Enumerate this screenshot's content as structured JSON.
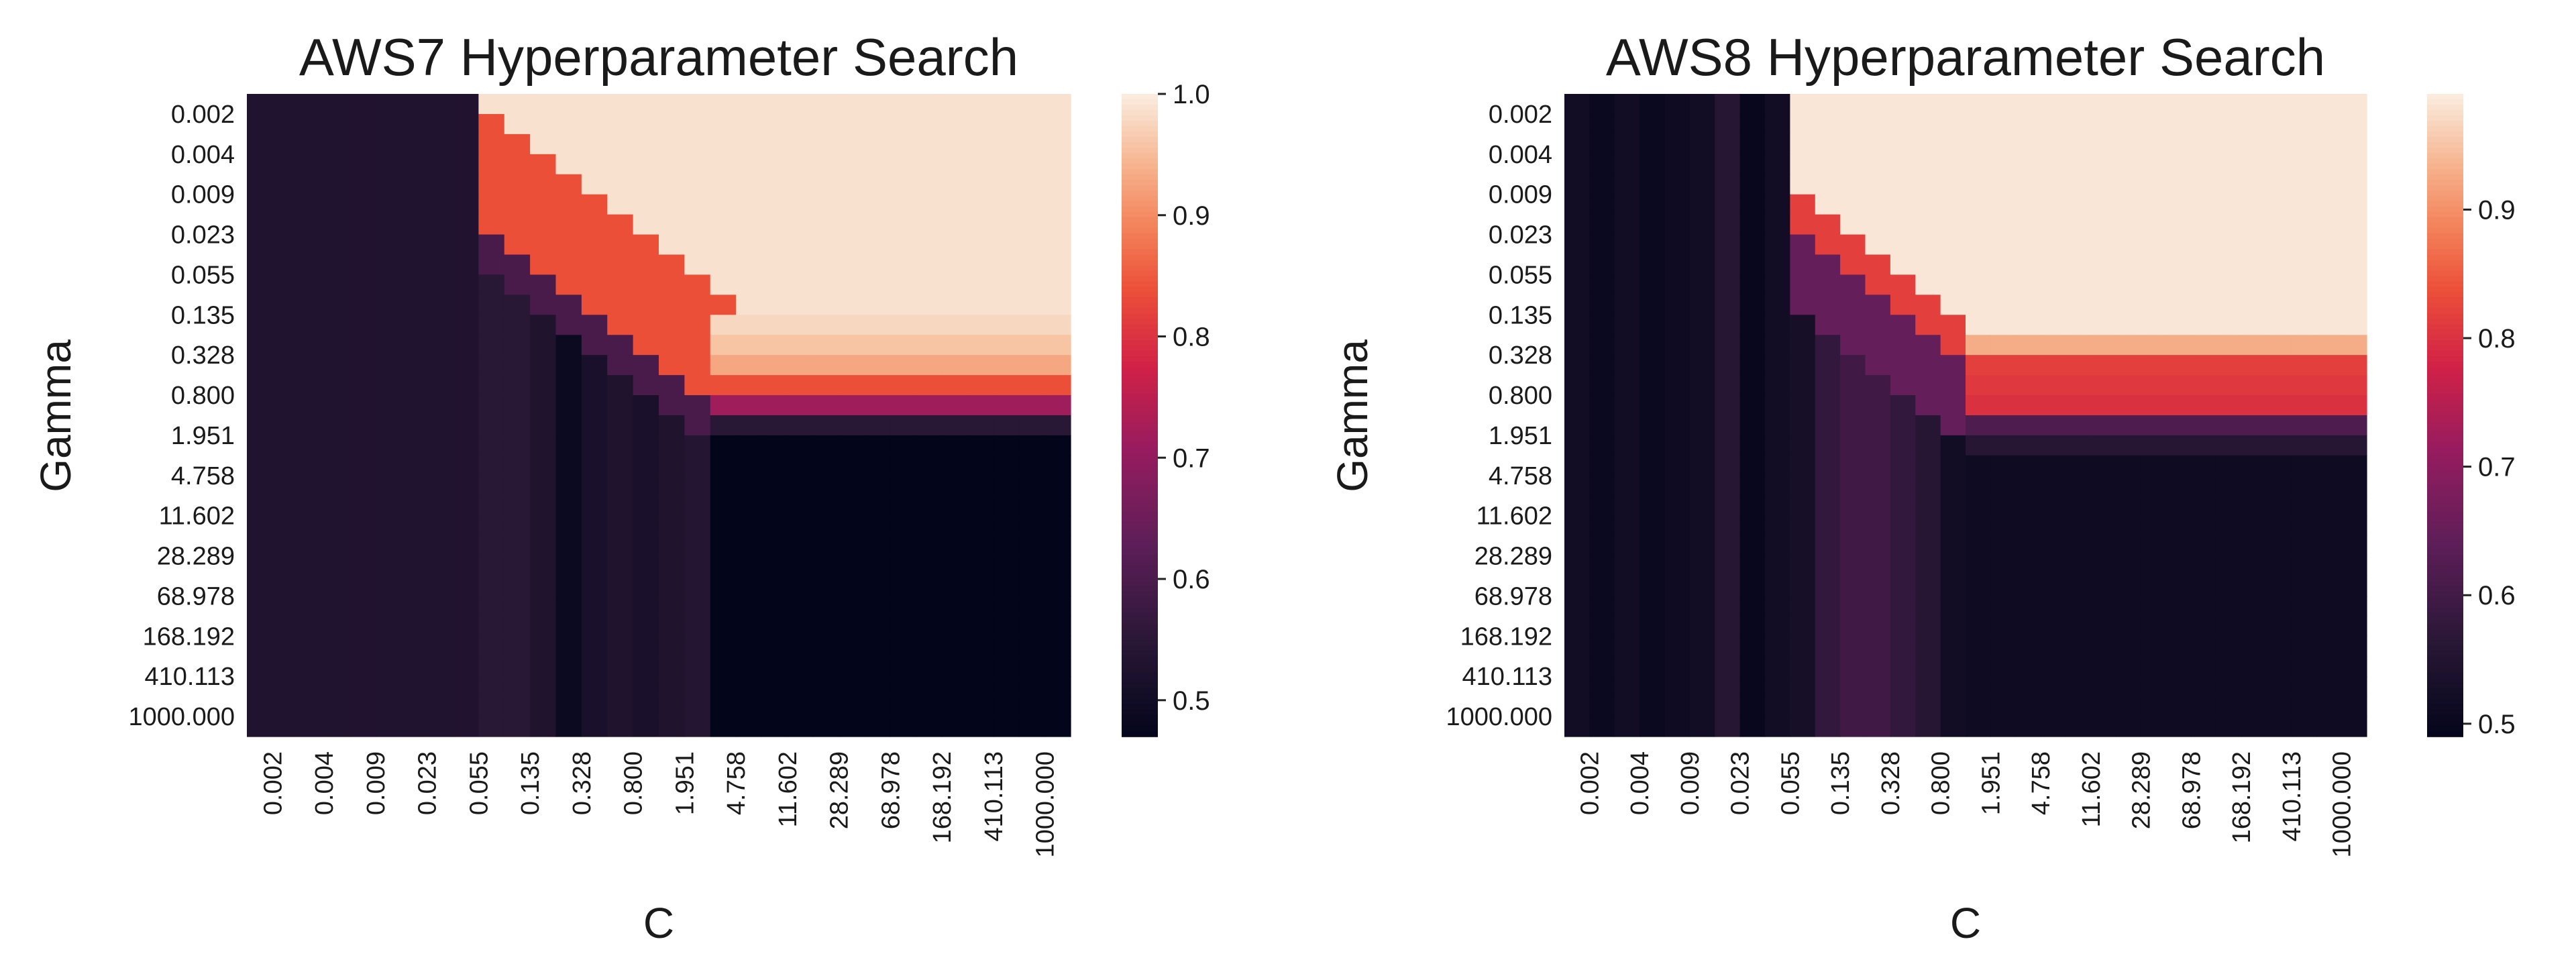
{
  "chart_data": [
    {
      "type": "heatmap",
      "title": "AWS7 Hyperparameter Search",
      "xlabel": "C",
      "ylabel": "Gamma",
      "x_ticks": [
        "0.002",
        "0.004",
        "0.009",
        "0.023",
        "0.055",
        "0.135",
        "0.328",
        "0.800",
        "1.951",
        "4.758",
        "11.602",
        "28.289",
        "68.978",
        "168.192",
        "410.113",
        "1000.000"
      ],
      "y_ticks": [
        "0.002",
        "0.004",
        "0.009",
        "0.023",
        "0.055",
        "0.135",
        "0.328",
        "0.800",
        "1.951",
        "4.758",
        "11.602",
        "28.289",
        "68.978",
        "168.192",
        "410.113",
        "1000.000"
      ],
      "grid_cols": 32,
      "grid_rows": 32,
      "colorbar": {
        "range": [
          0.47,
          1.0
        ],
        "ticks": [
          "0.5",
          "0.6",
          "0.7",
          "0.8",
          "0.9",
          "1.0"
        ],
        "tick_values": [
          0.5,
          0.6,
          0.7,
          0.8,
          0.9,
          1.0
        ],
        "colormap": "rocket"
      },
      "model": {
        "low": 0.53,
        "low_col_end": 9,
        "low_col_vals": [
          0.533,
          0.532,
          0.533,
          0.532,
          0.534,
          0.533,
          0.532,
          0.533,
          0.534
        ],
        "col_stripes": {
          "9": 0.55,
          "10": 0.55,
          "11": 0.53,
          "12": 0.49,
          "13": 0.52,
          "14": 0.53,
          "15": 0.52,
          "16": 0.53,
          "17": 0.54
        },
        "bottom_zero_row": 17,
        "bottom_zero_col": 18,
        "bottom_val": 0.47,
        "band_offset": 3,
        "band_width": 6,
        "band_val": 0.84,
        "top_val": 0.99,
        "upper_edge_offset": 1,
        "upper_edge_val": 0.6,
        "row_profile_rows": [
          11,
          12,
          13,
          14,
          15,
          16,
          17
        ],
        "row_profile_vals": [
          0.98,
          0.96,
          0.93,
          0.84,
          0.72,
          0.55,
          0.51
        ]
      }
    },
    {
      "type": "heatmap",
      "title": "AWS8 Hyperparameter Search",
      "xlabel": "C",
      "ylabel": "Gamma",
      "x_ticks": [
        "0.002",
        "0.004",
        "0.009",
        "0.023",
        "0.055",
        "0.135",
        "0.328",
        "0.800",
        "1.951",
        "4.758",
        "11.602",
        "28.289",
        "68.978",
        "168.192",
        "410.113",
        "1000.000"
      ],
      "y_ticks": [
        "0.002",
        "0.004",
        "0.009",
        "0.023",
        "0.055",
        "0.135",
        "0.328",
        "0.800",
        "1.951",
        "4.758",
        "11.602",
        "28.289",
        "68.978",
        "168.192",
        "410.113",
        "1000.000"
      ],
      "grid_cols": 32,
      "grid_rows": 32,
      "colorbar": {
        "range": [
          0.49,
          0.99
        ],
        "ticks": [
          "0.5",
          "0.6",
          "0.7",
          "0.8",
          "0.9"
        ],
        "tick_values": [
          0.5,
          0.6,
          0.7,
          0.8,
          0.9
        ],
        "colormap": "rocket"
      },
      "model": {
        "low": 0.51,
        "low_col_end": 9,
        "low_col_vals": [
          0.52,
          0.505,
          0.52,
          0.505,
          0.515,
          0.52,
          0.56,
          0.5,
          0.52
        ],
        "col_stripes": {
          "9": 0.53,
          "10": 0.58,
          "11": 0.6,
          "12": 0.6,
          "13": 0.58,
          "14": 0.56,
          "15": 0.52,
          "16": 0.53,
          "17": 0.53
        },
        "bottom_zero_row": 18,
        "bottom_zero_col": 16,
        "bottom_val": 0.515,
        "band_offset": 3,
        "band_width": 2,
        "band_val": 0.82,
        "top_val": 0.985,
        "upper_edge_offset": 3,
        "upper_edge_val": 0.65,
        "row_profile_rows": [
          12,
          13,
          14,
          15,
          16,
          17
        ],
        "row_profile_vals": [
          0.93,
          0.82,
          0.81,
          0.8,
          0.62,
          0.56
        ]
      }
    }
  ]
}
